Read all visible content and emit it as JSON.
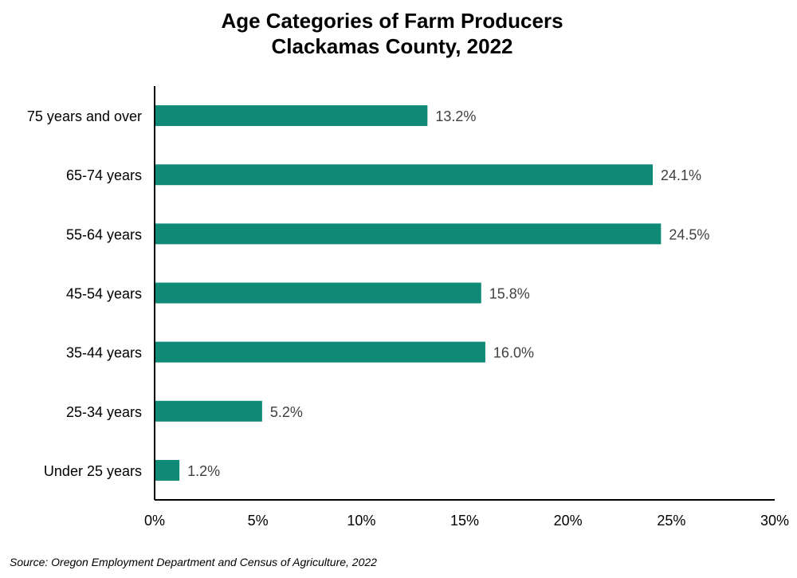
{
  "chart_data": {
    "type": "bar",
    "orientation": "horizontal",
    "title": "Age Categories of Farm Producers",
    "subtitle": "Clackamas County, 2022",
    "categories": [
      "75 years and over",
      "65-74 years",
      "55-64 years",
      "45-54 years",
      "35-44 years",
      "25-34 years",
      "Under 25 years"
    ],
    "values": [
      13.2,
      24.1,
      24.5,
      15.8,
      16.0,
      5.2,
      1.2
    ],
    "data_labels": [
      "13.2%",
      "24.1%",
      "24.5%",
      "15.8%",
      "16.0%",
      "5.2%",
      "1.2%"
    ],
    "xlim": [
      0,
      30
    ],
    "xticks": [
      0,
      5,
      10,
      15,
      20,
      25,
      30
    ],
    "xtick_labels": [
      "0%",
      "5%",
      "10%",
      "15%",
      "20%",
      "25%",
      "30%"
    ],
    "xlabel": "",
    "ylabel": "",
    "grid": false,
    "bar_color": "#0f8a77",
    "source": "Source: Oregon Employment Department and Census of Agriculture, 2022"
  }
}
